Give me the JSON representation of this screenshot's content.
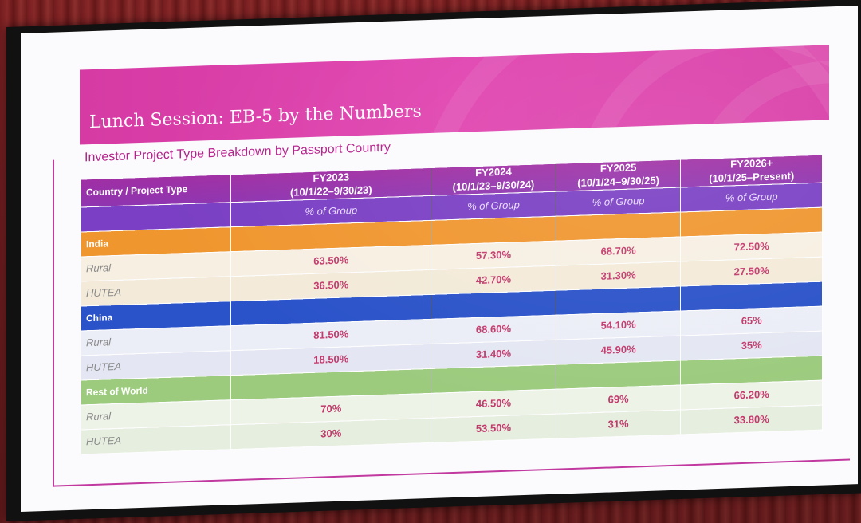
{
  "slide": {
    "title": "Lunch Session: EB-5 by the Numbers",
    "subtitle": "Investor Project Type Breakdown by Passport Country"
  },
  "table": {
    "corner_header": "Country / Project Type",
    "columns": [
      {
        "fy": "FY2023",
        "range": "(10/1/22–9/30/23)",
        "metric": "% of Group"
      },
      {
        "fy": "FY2024",
        "range": "(10/1/23–9/30/24)",
        "metric": "% of Group"
      },
      {
        "fy": "FY2025",
        "range": "(10/1/24–9/30/25)",
        "metric": "% of Group"
      },
      {
        "fy": "FY2026+",
        "range": "(10/1/25–Present)",
        "metric": "% of Group"
      }
    ],
    "groups": [
      {
        "name": "India",
        "color": "#f0962f",
        "rows": [
          {
            "type": "Rural",
            "values": [
              "63.50%",
              "57.30%",
              "68.70%",
              "72.50%"
            ]
          },
          {
            "type": "HUTEA",
            "values": [
              "36.50%",
              "42.70%",
              "31.30%",
              "27.50%"
            ]
          }
        ]
      },
      {
        "name": "China",
        "color": "#2a52c9",
        "rows": [
          {
            "type": "Rural",
            "values": [
              "81.50%",
              "68.60%",
              "54.10%",
              "65%"
            ]
          },
          {
            "type": "HUTEA",
            "values": [
              "18.50%",
              "31.40%",
              "45.90%",
              "35%"
            ]
          }
        ]
      },
      {
        "name": "Rest of World",
        "color": "#9ccb7e",
        "rows": [
          {
            "type": "Rural",
            "values": [
              "70%",
              "46.50%",
              "69%",
              "66.20%"
            ]
          },
          {
            "type": "HUTEA",
            "values": [
              "30%",
              "53.50%",
              "31%",
              "33.80%"
            ]
          }
        ]
      }
    ]
  },
  "colors": {
    "banner": "#d63ba4",
    "header": "#9a33a8",
    "value_text": "#c23a6c",
    "subtitle_text": "#b5208b"
  }
}
